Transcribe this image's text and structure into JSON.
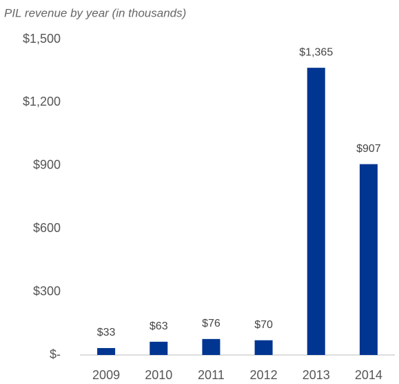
{
  "chart_data": {
    "type": "bar",
    "title": "PIL revenue by year (in thousands)",
    "categories": [
      "2009",
      "2010",
      "2011",
      "2012",
      "2013",
      "2014"
    ],
    "values": [
      33,
      63,
      76,
      70,
      1365,
      907
    ],
    "value_labels": [
      "$33",
      "$63",
      "$76",
      "$70",
      "$1,365",
      "$907"
    ],
    "color": "#003591",
    "ylim": [
      0,
      1500
    ],
    "yticks": [
      {
        "value": 0,
        "label": "$-"
      },
      {
        "value": 300,
        "label": "$300"
      },
      {
        "value": 600,
        "label": "$600"
      },
      {
        "value": 900,
        "label": "$900"
      },
      {
        "value": 1200,
        "label": "$1,200"
      },
      {
        "value": 1500,
        "label": "$1,500"
      }
    ],
    "grid": false
  }
}
